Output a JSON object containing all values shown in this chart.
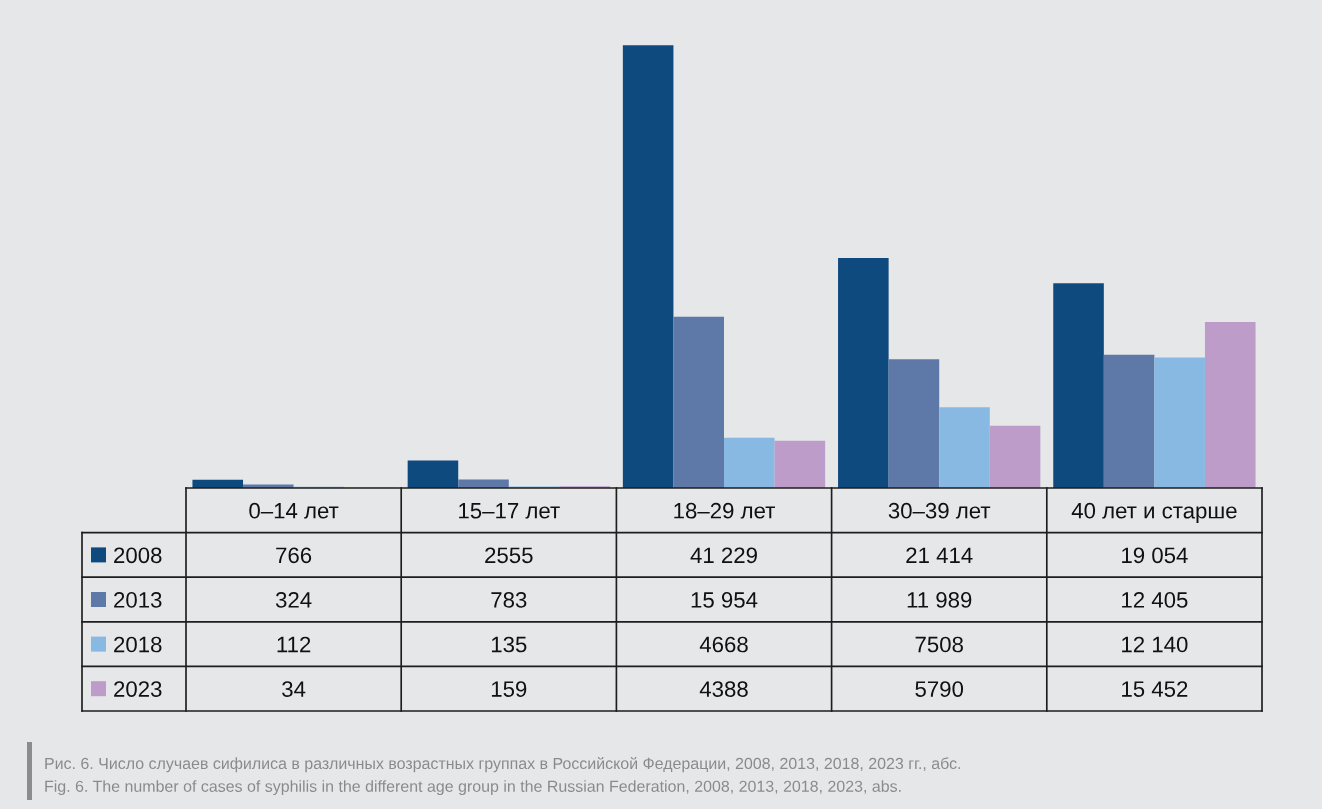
{
  "chart_data": {
    "type": "bar",
    "categories": [
      "0–14 лет",
      "15–17 лет",
      "18–29 лет",
      "30–39 лет",
      "40 лет и старше"
    ],
    "series": [
      {
        "name": "2008",
        "color": "#0f4a7f",
        "values": [
          766,
          2555,
          41229,
          21414,
          19054
        ],
        "value_labels": [
          "766",
          "2555",
          "41 229",
          "21 414",
          "19 054"
        ]
      },
      {
        "name": "2013",
        "color": "#5e79a8",
        "values": [
          324,
          783,
          15954,
          11989,
          12405
        ],
        "value_labels": [
          "324",
          "783",
          "15 954",
          "11 989",
          "12 405"
        ]
      },
      {
        "name": "2018",
        "color": "#87b9e3",
        "values": [
          112,
          135,
          4668,
          7508,
          12140
        ],
        "value_labels": [
          "112",
          "135",
          "4668",
          "7508",
          "12 140"
        ]
      },
      {
        "name": "2023",
        "color": "#bd9cc9",
        "values": [
          34,
          159,
          4388,
          5790,
          15452
        ],
        "value_labels": [
          "34",
          "159",
          "4388",
          "5790",
          "15 452"
        ]
      }
    ],
    "legend": "bottom left",
    "annotations": [
      "Рис. 6. Число случаев сифилиса в различных возрастных группах в Российской Федерации, 2008, 2013, 2018, 2023 гг., абс.",
      "Fig. 6. The number of cases of syphilis in the different age group in the Russian Federation, 2008, 2013, 2018, 2023, abs."
    ]
  }
}
